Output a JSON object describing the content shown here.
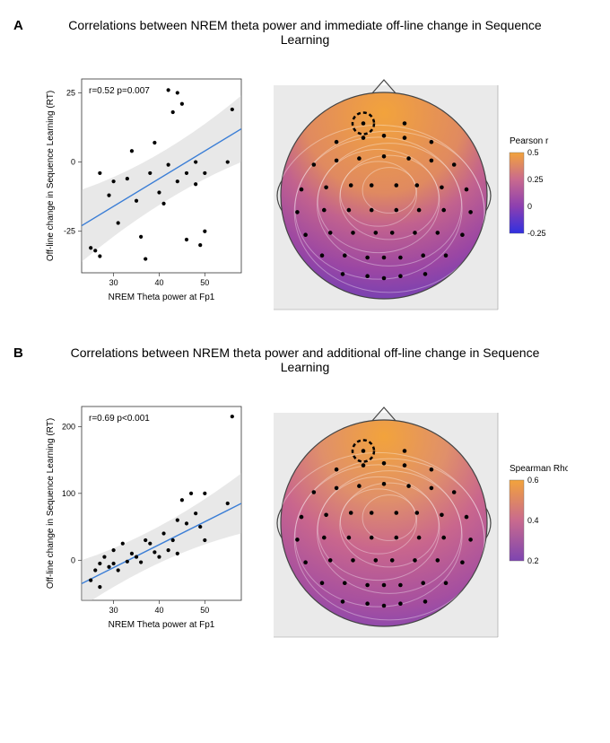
{
  "panelA": {
    "label": "A",
    "title": "Correlations between NREM theta power and immediate off-line change in Sequence Learning",
    "scatter": {
      "type": "scatter",
      "x_label": "NREM Theta power at Fp1",
      "y_label": "Off-line change in Sequence Learning (RT)",
      "stat_text": "r=0.52 p=0.007",
      "xlim": [
        23,
        58
      ],
      "ylim": [
        -40,
        30
      ],
      "xticks": [
        30,
        40,
        50
      ],
      "yticks": [
        -25,
        0,
        25
      ],
      "line_color": "#3b7ed6",
      "ribbon_color": "#cccccc",
      "ribbon_opacity": 0.45,
      "point_color": "#000000",
      "point_radius": 2.1,
      "background": "#ffffff",
      "border_color": "#333333",
      "points": [
        [
          25,
          -31
        ],
        [
          26,
          -32
        ],
        [
          27,
          -34
        ],
        [
          27,
          -4
        ],
        [
          29,
          -12
        ],
        [
          30,
          -7
        ],
        [
          31,
          -22
        ],
        [
          33,
          -6
        ],
        [
          34,
          4
        ],
        [
          35,
          -14
        ],
        [
          36,
          -27
        ],
        [
          37,
          -35
        ],
        [
          38,
          -4
        ],
        [
          39,
          7
        ],
        [
          40,
          -11
        ],
        [
          41,
          -15
        ],
        [
          42,
          26
        ],
        [
          42,
          -1
        ],
        [
          43,
          18
        ],
        [
          44,
          -7
        ],
        [
          44,
          25
        ],
        [
          45,
          21
        ],
        [
          46,
          -4
        ],
        [
          46,
          -28
        ],
        [
          48,
          0
        ],
        [
          48,
          -8
        ],
        [
          49,
          -30
        ],
        [
          50,
          -25
        ],
        [
          50,
          -4
        ],
        [
          55,
          0
        ],
        [
          56,
          19
        ]
      ],
      "reg_line": {
        "y_at_xmin": -23,
        "y_at_xmax": 12
      },
      "ribbon_top": {
        "y_at_xmin": -10,
        "y_at_xmid": 0,
        "y_at_xmax": 24
      },
      "ribbon_bot": {
        "y_at_xmin": -36,
        "y_at_xmid": -12,
        "y_at_xmax": 0
      }
    },
    "topo": {
      "legend_title": "Pearson r",
      "legend_stops": [
        {
          "v": 0.5,
          "c": "#f2a33c"
        },
        {
          "v": 0.25,
          "c": "#c96a8e"
        },
        {
          "v": 0.0,
          "c": "#8d3fb0"
        },
        {
          "v": -0.25,
          "c": "#3030e0"
        }
      ],
      "highlight_pos": [
        0.4,
        0.15
      ],
      "gradient_id": "gA",
      "gradient_stops": [
        {
          "off": "0%",
          "c": "#f2a33c"
        },
        {
          "off": "35%",
          "c": "#e08a60"
        },
        {
          "off": "50%",
          "c": "#c2628e"
        },
        {
          "off": "70%",
          "c": "#9a46a4"
        },
        {
          "off": "88%",
          "c": "#6a3fb8"
        },
        {
          "off": "100%",
          "c": "#3030e0"
        }
      ],
      "gradient_center": [
        0.5,
        0.1
      ]
    }
  },
  "panelB": {
    "label": "B",
    "title": "Correlations between NREM theta power and additional off-line change in Sequence Learning",
    "scatter": {
      "type": "scatter",
      "x_label": "NREM Theta power at Fp1",
      "y_label": "Off-line change in Sequence Learning (RT)",
      "stat_text": "r=0.69 p<0.001",
      "xlim": [
        23,
        58
      ],
      "ylim": [
        -60,
        230
      ],
      "xticks": [
        30,
        40,
        50
      ],
      "yticks": [
        0,
        100,
        200
      ],
      "line_color": "#3b7ed6",
      "ribbon_color": "#cccccc",
      "ribbon_opacity": 0.45,
      "point_color": "#000000",
      "point_radius": 2.1,
      "background": "#ffffff",
      "border_color": "#333333",
      "points": [
        [
          25,
          -30
        ],
        [
          26,
          -15
        ],
        [
          27,
          -5
        ],
        [
          27,
          -40
        ],
        [
          28,
          5
        ],
        [
          29,
          -10
        ],
        [
          30,
          -5
        ],
        [
          30,
          15
        ],
        [
          31,
          -15
        ],
        [
          32,
          25
        ],
        [
          33,
          -2
        ],
        [
          34,
          10
        ],
        [
          35,
          5
        ],
        [
          36,
          -3
        ],
        [
          37,
          30
        ],
        [
          38,
          25
        ],
        [
          39,
          12
        ],
        [
          40,
          5
        ],
        [
          41,
          40
        ],
        [
          42,
          15
        ],
        [
          43,
          30
        ],
        [
          44,
          10
        ],
        [
          44,
          60
        ],
        [
          45,
          90
        ],
        [
          46,
          55
        ],
        [
          47,
          100
        ],
        [
          48,
          70
        ],
        [
          49,
          50
        ],
        [
          50,
          30
        ],
        [
          50,
          100
        ],
        [
          55,
          85
        ],
        [
          56,
          215
        ]
      ],
      "reg_line": {
        "y_at_xmin": -35,
        "y_at_xmax": 85
      },
      "ribbon_top": {
        "y_at_xmin": 0,
        "y_at_xmid": 40,
        "y_at_xmax": 130
      },
      "ribbon_bot": {
        "y_at_xmin": -70,
        "y_at_xmid": 10,
        "y_at_xmax": 40
      }
    },
    "topo": {
      "legend_title": "Spearman Rho",
      "legend_stops": [
        {
          "v": 0.6,
          "c": "#f2a33c"
        },
        {
          "v": 0.4,
          "c": "#c96a8e"
        },
        {
          "v": 0.2,
          "c": "#7e45b0"
        }
      ],
      "highlight_pos": [
        0.4,
        0.15
      ],
      "gradient_id": "gB",
      "gradient_stops": [
        {
          "off": "0%",
          "c": "#f2a33c"
        },
        {
          "off": "28%",
          "c": "#e0906a"
        },
        {
          "off": "50%",
          "c": "#c9668d"
        },
        {
          "off": "75%",
          "c": "#a54fa0"
        },
        {
          "off": "100%",
          "c": "#6c40c0"
        }
      ],
      "gradient_center": [
        0.5,
        0.08
      ]
    }
  },
  "topo_electrodes": [
    [
      0.4,
      0.15
    ],
    [
      0.6,
      0.15
    ],
    [
      0.27,
      0.24
    ],
    [
      0.4,
      0.22
    ],
    [
      0.5,
      0.21
    ],
    [
      0.6,
      0.22
    ],
    [
      0.73,
      0.24
    ],
    [
      0.16,
      0.35
    ],
    [
      0.27,
      0.33
    ],
    [
      0.38,
      0.32
    ],
    [
      0.5,
      0.31
    ],
    [
      0.62,
      0.32
    ],
    [
      0.73,
      0.33
    ],
    [
      0.84,
      0.35
    ],
    [
      0.1,
      0.47
    ],
    [
      0.22,
      0.46
    ],
    [
      0.34,
      0.45
    ],
    [
      0.44,
      0.45
    ],
    [
      0.56,
      0.45
    ],
    [
      0.66,
      0.45
    ],
    [
      0.78,
      0.46
    ],
    [
      0.9,
      0.47
    ],
    [
      0.08,
      0.58
    ],
    [
      0.21,
      0.57
    ],
    [
      0.33,
      0.57
    ],
    [
      0.44,
      0.57
    ],
    [
      0.56,
      0.57
    ],
    [
      0.67,
      0.57
    ],
    [
      0.79,
      0.57
    ],
    [
      0.92,
      0.58
    ],
    [
      0.12,
      0.69
    ],
    [
      0.24,
      0.68
    ],
    [
      0.35,
      0.68
    ],
    [
      0.46,
      0.68
    ],
    [
      0.54,
      0.68
    ],
    [
      0.65,
      0.68
    ],
    [
      0.76,
      0.68
    ],
    [
      0.88,
      0.69
    ],
    [
      0.2,
      0.79
    ],
    [
      0.31,
      0.79
    ],
    [
      0.42,
      0.8
    ],
    [
      0.5,
      0.8
    ],
    [
      0.58,
      0.8
    ],
    [
      0.69,
      0.79
    ],
    [
      0.8,
      0.79
    ],
    [
      0.3,
      0.88
    ],
    [
      0.42,
      0.89
    ],
    [
      0.5,
      0.9
    ],
    [
      0.58,
      0.89
    ],
    [
      0.7,
      0.88
    ]
  ],
  "topo_style": {
    "head_outline": "#444444",
    "electrode_color": "#000000",
    "electrode_radius": 2.3,
    "contour_color": "#ffffff",
    "contour_opacity": 0.35,
    "highlight_stroke": "#000000",
    "highlight_dash": "4 3",
    "background_fill": "#eaeaea"
  }
}
